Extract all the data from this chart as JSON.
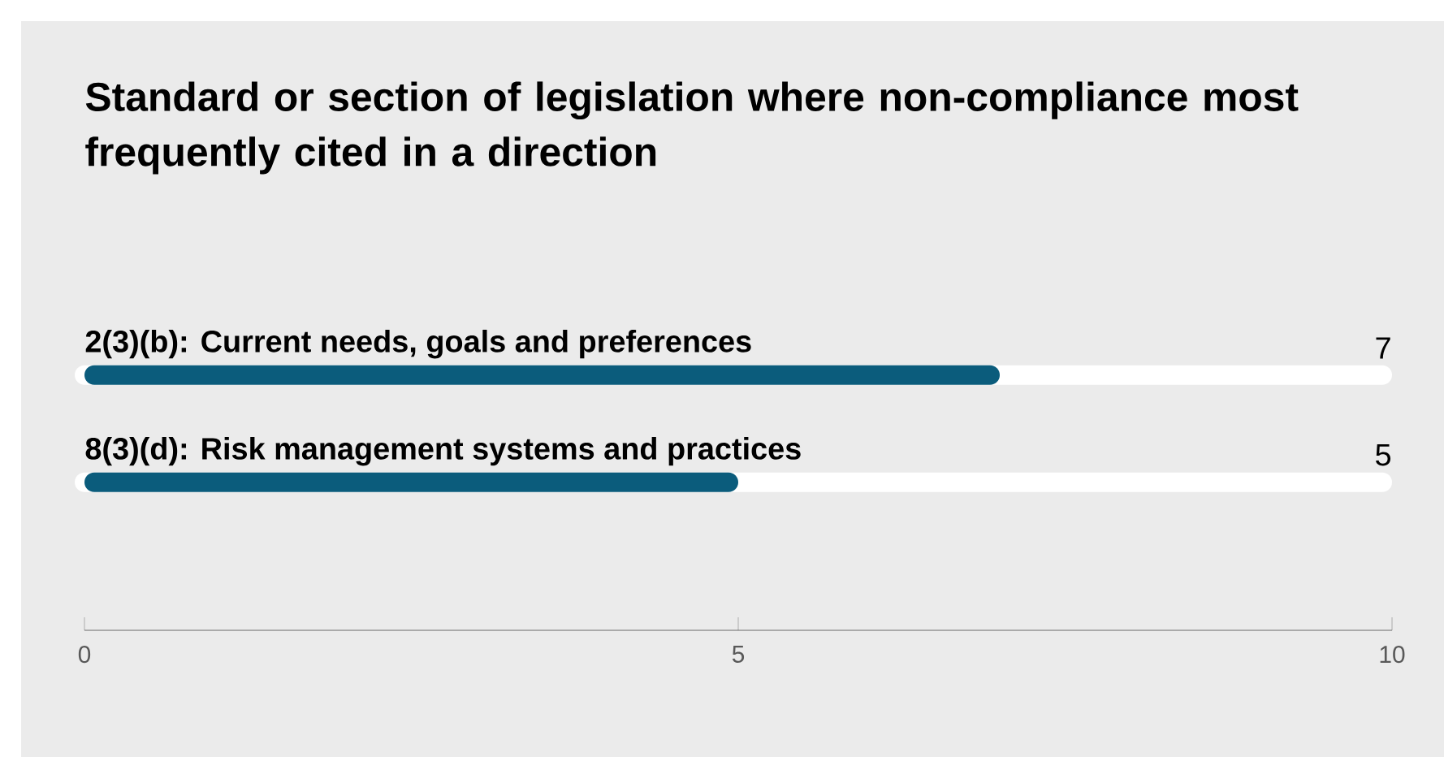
{
  "chart_data": {
    "type": "bar",
    "orientation": "horizontal",
    "title": "Standard or section of legislation where non-compliance most frequently cited in a direction",
    "categories": [
      "2(3)(b): Current needs, goals and preferences",
      "8(3)(d): Risk management systems and practices"
    ],
    "values": [
      7,
      5
    ],
    "color": "#0b5c7c",
    "xlim": [
      0,
      10
    ],
    "xticks": [
      0,
      5,
      10
    ],
    "data_labels": true
  }
}
